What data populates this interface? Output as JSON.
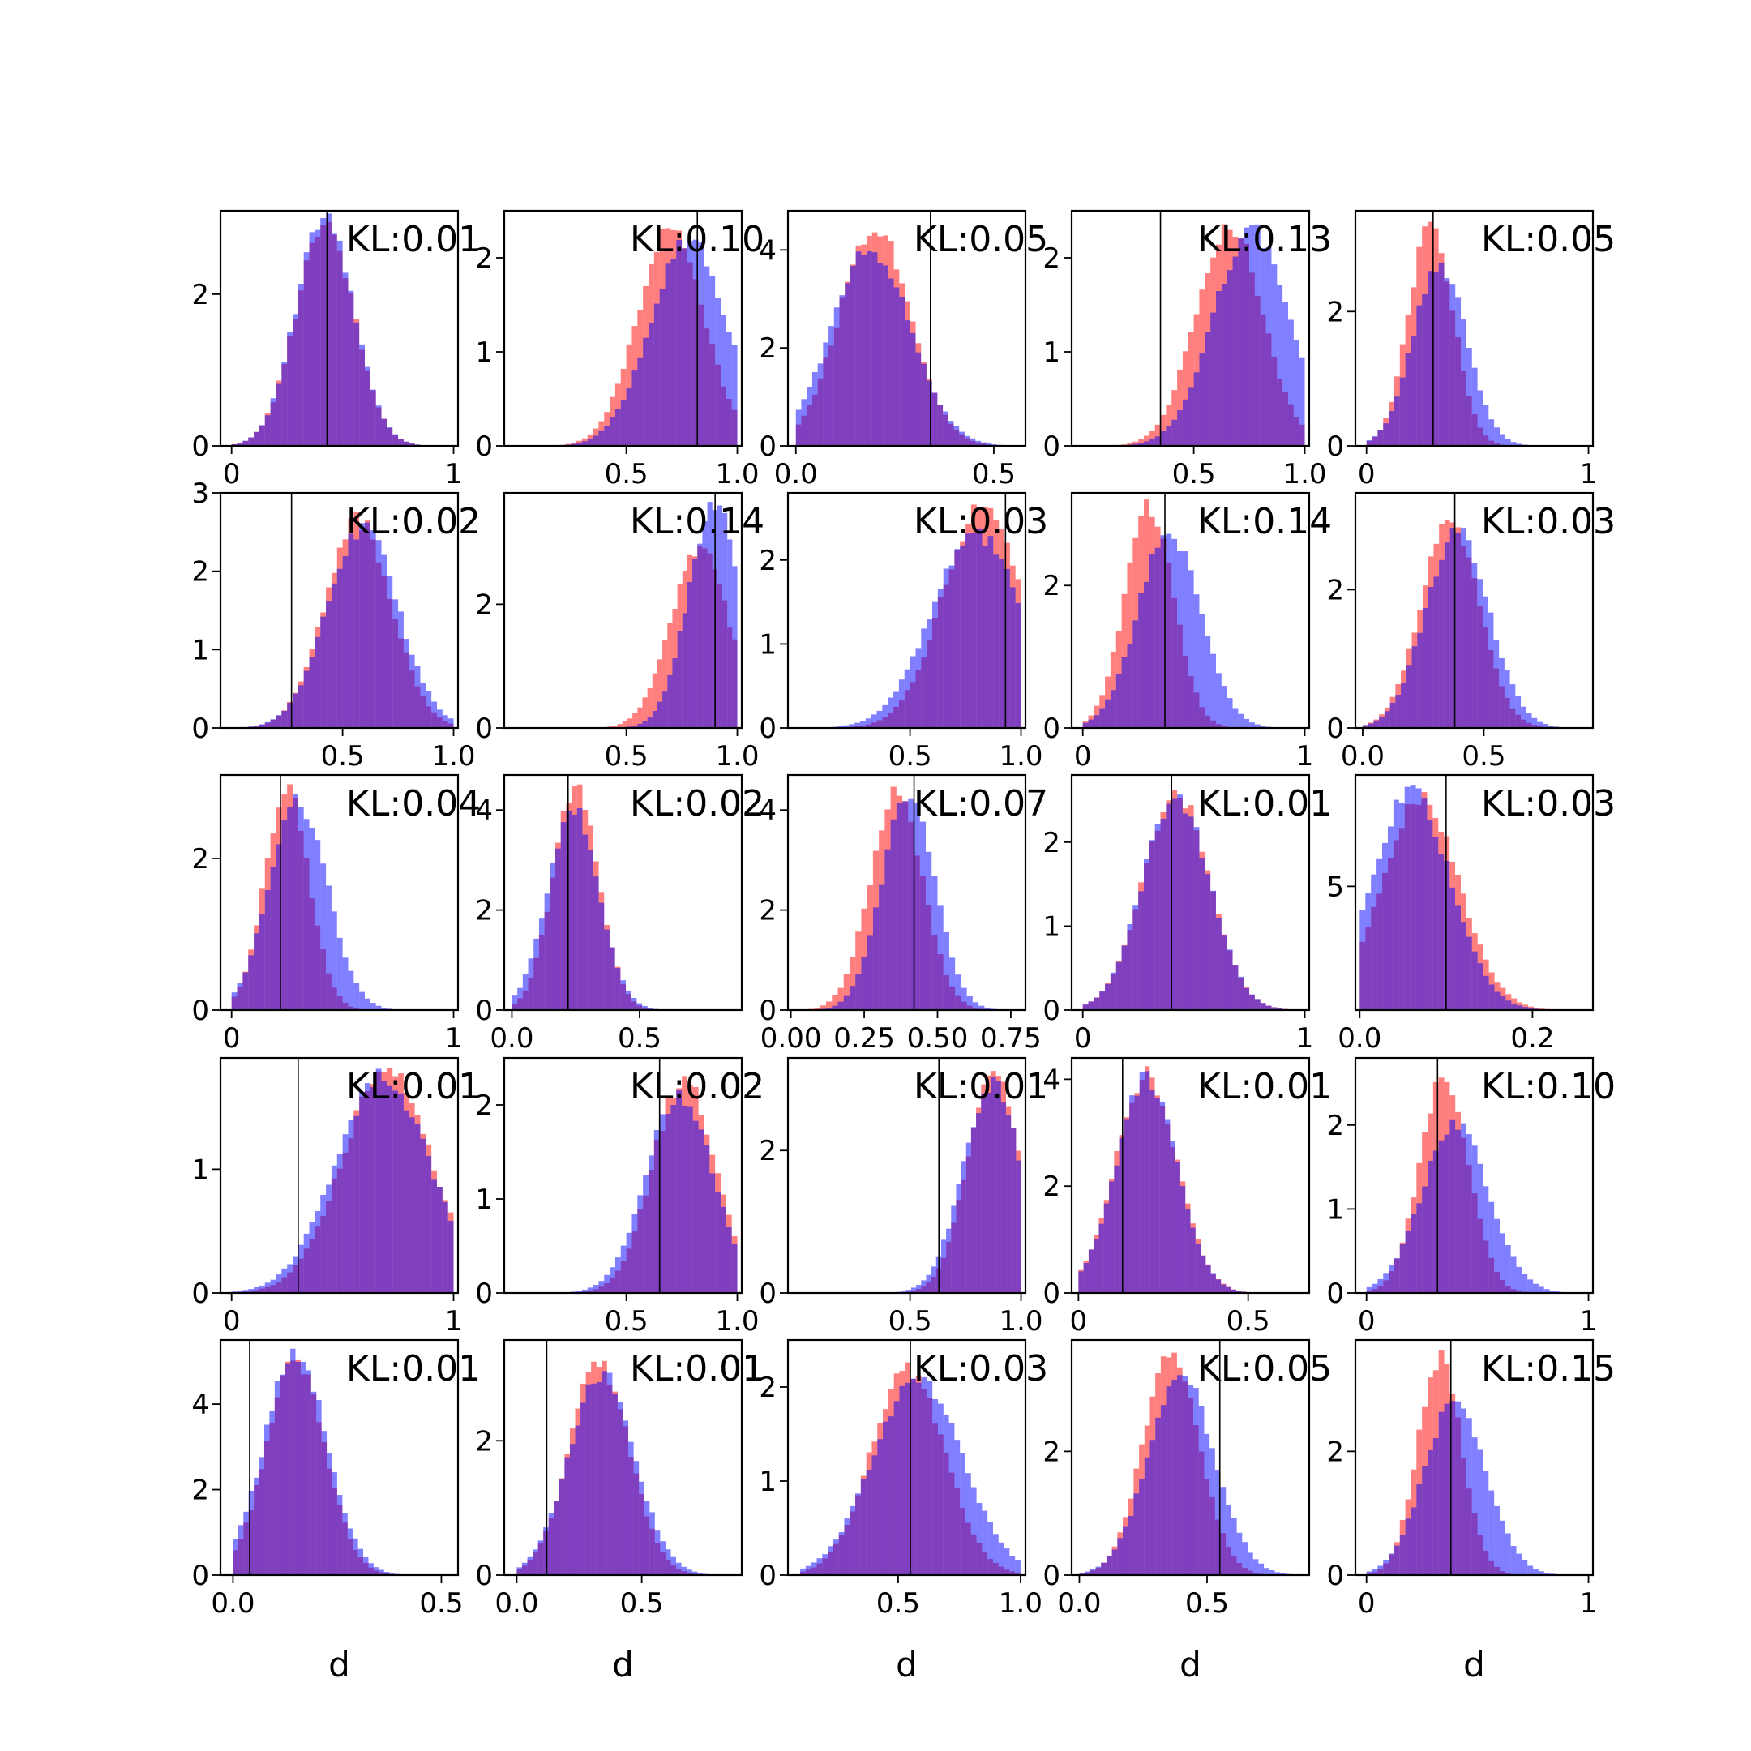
{
  "figure": {
    "colors": {
      "red": "#ff0000",
      "blue": "#0000ff",
      "overlap": "#7f00bf",
      "line": "#000000",
      "background": "#ffffff"
    }
  },
  "chart_data": [
    {
      "type": "histogram",
      "kl_label": "KL:0.01",
      "vline": 0.43,
      "xlim": [
        -0.05,
        1.02
      ],
      "ylim": [
        0,
        3.1
      ],
      "xticks": [
        {
          "v": 0,
          "l": "0"
        },
        {
          "v": 1,
          "l": "1"
        }
      ],
      "yticks": [
        {
          "v": 0,
          "l": "0"
        },
        {
          "v": 2,
          "l": "2"
        }
      ],
      "red": {
        "mean": 0.42,
        "sd": 0.13,
        "peak": 2.95,
        "lo": 0.0,
        "hi": 1.0
      },
      "blue": {
        "mean": 0.42,
        "sd": 0.13,
        "peak": 3.0,
        "lo": 0.0,
        "hi": 1.0
      },
      "xlabel": ""
    },
    {
      "type": "histogram",
      "kl_label": "KL:0.10",
      "vline": 0.82,
      "xlim": [
        -0.05,
        1.02
      ],
      "ylim": [
        0,
        2.5
      ],
      "xticks": [
        {
          "v": 0.5,
          "l": "0.5"
        },
        {
          "v": 1,
          "l": "1.0"
        }
      ],
      "yticks": [
        {
          "v": 0,
          "l": "0"
        },
        {
          "v": 1,
          "l": "1"
        },
        {
          "v": 2,
          "l": "2"
        }
      ],
      "red": {
        "mean": 0.7,
        "sd": 0.15,
        "peak": 2.3,
        "lo": 0.0,
        "hi": 1.0
      },
      "blue": {
        "mean": 0.78,
        "sd": 0.17,
        "peak": 2.2,
        "lo": 0.0,
        "hi": 1.0
      },
      "xlabel": ""
    },
    {
      "type": "histogram",
      "kl_label": "KL:0.05",
      "vline": 0.34,
      "xlim": [
        -0.02,
        0.58
      ],
      "ylim": [
        0,
        4.8
      ],
      "xticks": [
        {
          "v": 0,
          "l": "0.0"
        },
        {
          "v": 0.5,
          "l": "0.5"
        }
      ],
      "yticks": [
        {
          "v": 0,
          "l": "0"
        },
        {
          "v": 2,
          "l": "2"
        },
        {
          "v": 4,
          "l": "4"
        }
      ],
      "red": {
        "mean": 0.2,
        "sd": 0.09,
        "peak": 4.5,
        "lo": 0.0,
        "hi": 0.55
      },
      "blue": {
        "mean": 0.19,
        "sd": 0.1,
        "peak": 4.0,
        "lo": 0.0,
        "hi": 0.55
      },
      "xlabel": ""
    },
    {
      "type": "histogram",
      "kl_label": "KL:0.13",
      "vline": 0.35,
      "xlim": [
        -0.05,
        1.02
      ],
      "ylim": [
        0,
        2.5
      ],
      "xticks": [
        {
          "v": 0.5,
          "l": "0.5"
        },
        {
          "v": 1,
          "l": "1.0"
        }
      ],
      "yticks": [
        {
          "v": 0,
          "l": "0"
        },
        {
          "v": 1,
          "l": "1"
        },
        {
          "v": 2,
          "l": "2"
        }
      ],
      "red": {
        "mean": 0.66,
        "sd": 0.15,
        "peak": 2.35,
        "lo": 0.0,
        "hi": 1.0
      },
      "blue": {
        "mean": 0.76,
        "sd": 0.17,
        "peak": 2.3,
        "lo": 0.0,
        "hi": 1.0
      },
      "xlabel": ""
    },
    {
      "type": "histogram",
      "kl_label": "KL:0.05",
      "vline": 0.3,
      "xlim": [
        -0.05,
        1.02
      ],
      "ylim": [
        0,
        3.5
      ],
      "xticks": [
        {
          "v": 0,
          "l": "0"
        },
        {
          "v": 1,
          "l": "1"
        }
      ],
      "yticks": [
        {
          "v": 0,
          "l": "0"
        },
        {
          "v": 2,
          "l": "2"
        }
      ],
      "red": {
        "mean": 0.29,
        "sd": 0.1,
        "peak": 3.3,
        "lo": 0.0,
        "hi": 1.0
      },
      "blue": {
        "mean": 0.33,
        "sd": 0.12,
        "peak": 2.7,
        "lo": 0.0,
        "hi": 1.0
      },
      "xlabel": ""
    },
    {
      "type": "histogram",
      "kl_label": "KL:0.02",
      "vline": 0.27,
      "xlim": [
        -0.05,
        1.02
      ],
      "ylim": [
        0,
        3.0
      ],
      "xticks": [
        {
          "v": 0.5,
          "l": "0.5"
        },
        {
          "v": 1,
          "l": "1.0"
        }
      ],
      "yticks": [
        {
          "v": 0,
          "l": "0"
        },
        {
          "v": 1,
          "l": "1"
        },
        {
          "v": 2,
          "l": "2"
        },
        {
          "v": 3,
          "l": "3"
        }
      ],
      "red": {
        "mean": 0.57,
        "sd": 0.15,
        "peak": 2.65,
        "lo": 0.0,
        "hi": 1.0
      },
      "blue": {
        "mean": 0.59,
        "sd": 0.16,
        "peak": 2.55,
        "lo": 0.0,
        "hi": 1.0
      },
      "xlabel": ""
    },
    {
      "type": "histogram",
      "kl_label": "KL:0.14",
      "vline": 0.9,
      "xlim": [
        -0.05,
        1.02
      ],
      "ylim": [
        0,
        3.8
      ],
      "xticks": [
        {
          "v": 0.5,
          "l": "0.5"
        },
        {
          "v": 1,
          "l": "1.0"
        }
      ],
      "yticks": [
        {
          "v": 0,
          "l": "0"
        },
        {
          "v": 2,
          "l": "2"
        }
      ],
      "red": {
        "mean": 0.83,
        "sd": 0.13,
        "peak": 2.9,
        "lo": 0.1,
        "hi": 1.0
      },
      "blue": {
        "mean": 0.9,
        "sd": 0.12,
        "peak": 3.6,
        "lo": 0.1,
        "hi": 1.0
      },
      "xlabel": ""
    },
    {
      "type": "histogram",
      "kl_label": "KL:0.03",
      "vline": 0.93,
      "xlim": [
        -0.05,
        1.02
      ],
      "ylim": [
        0,
        2.8
      ],
      "xticks": [
        {
          "v": 0.5,
          "l": "0.5"
        },
        {
          "v": 1,
          "l": "1.0"
        }
      ],
      "yticks": [
        {
          "v": 0,
          "l": "0"
        },
        {
          "v": 1,
          "l": "1"
        },
        {
          "v": 2,
          "l": "2"
        }
      ],
      "red": {
        "mean": 0.83,
        "sd": 0.18,
        "peak": 2.65,
        "lo": 0.0,
        "hi": 1.0
      },
      "blue": {
        "mean": 0.8,
        "sd": 0.2,
        "peak": 2.3,
        "lo": 0.0,
        "hi": 1.0
      },
      "xlabel": ""
    },
    {
      "type": "histogram",
      "kl_label": "KL:0.14",
      "vline": 0.37,
      "xlim": [
        -0.05,
        1.02
      ],
      "ylim": [
        0,
        3.3
      ],
      "xticks": [
        {
          "v": 0,
          "l": "0"
        },
        {
          "v": 1,
          "l": "1"
        }
      ],
      "yticks": [
        {
          "v": 0,
          "l": "0"
        },
        {
          "v": 2,
          "l": "2"
        }
      ],
      "red": {
        "mean": 0.3,
        "sd": 0.11,
        "peak": 3.1,
        "lo": 0.0,
        "hi": 1.0
      },
      "blue": {
        "mean": 0.39,
        "sd": 0.14,
        "peak": 2.75,
        "lo": 0.0,
        "hi": 1.0
      },
      "xlabel": ""
    },
    {
      "type": "histogram",
      "kl_label": "KL:0.03",
      "vline": 0.38,
      "xlim": [
        -0.03,
        0.95
      ],
      "ylim": [
        0,
        3.4
      ],
      "xticks": [
        {
          "v": 0,
          "l": "0.0"
        },
        {
          "v": 0.5,
          "l": "0.5"
        }
      ],
      "yticks": [
        {
          "v": 0,
          "l": "0"
        },
        {
          "v": 2,
          "l": "2"
        }
      ],
      "red": {
        "mean": 0.36,
        "sd": 0.12,
        "peak": 3.0,
        "lo": 0.0,
        "hi": 0.9
      },
      "blue": {
        "mean": 0.39,
        "sd": 0.13,
        "peak": 2.85,
        "lo": 0.0,
        "hi": 0.9
      },
      "xlabel": ""
    },
    {
      "type": "histogram",
      "kl_label": "KL:0.04",
      "vline": 0.22,
      "xlim": [
        -0.05,
        1.02
      ],
      "ylim": [
        0,
        3.1
      ],
      "xticks": [
        {
          "v": 0,
          "l": "0"
        },
        {
          "v": 1,
          "l": "1"
        }
      ],
      "yticks": [
        {
          "v": 0,
          "l": "0"
        },
        {
          "v": 2,
          "l": "2"
        }
      ],
      "red": {
        "mean": 0.25,
        "sd": 0.1,
        "peak": 2.9,
        "lo": 0.0,
        "hi": 1.0
      },
      "blue": {
        "mean": 0.3,
        "sd": 0.13,
        "peak": 2.75,
        "lo": 0.0,
        "hi": 1.0
      },
      "xlabel": ""
    },
    {
      "type": "histogram",
      "kl_label": "KL:0.02",
      "vline": 0.22,
      "xlim": [
        -0.03,
        0.9
      ],
      "ylim": [
        0,
        4.7
      ],
      "xticks": [
        {
          "v": 0,
          "l": "0.0"
        },
        {
          "v": 0.5,
          "l": "0.5"
        }
      ],
      "yticks": [
        {
          "v": 0,
          "l": "0"
        },
        {
          "v": 2,
          "l": "2"
        },
        {
          "v": 4,
          "l": "4"
        }
      ],
      "red": {
        "mean": 0.25,
        "sd": 0.09,
        "peak": 4.4,
        "lo": 0.0,
        "hi": 0.85
      },
      "blue": {
        "mean": 0.24,
        "sd": 0.1,
        "peak": 4.0,
        "lo": 0.0,
        "hi": 0.85
      },
      "xlabel": ""
    },
    {
      "type": "histogram",
      "kl_label": "KL:0.07",
      "vline": 0.42,
      "xlim": [
        -0.01,
        0.8
      ],
      "ylim": [
        0,
        4.7
      ],
      "xticks": [
        {
          "v": 0,
          "l": "0.00"
        },
        {
          "v": 0.25,
          "l": "0.25"
        },
        {
          "v": 0.5,
          "l": "0.50"
        },
        {
          "v": 0.75,
          "l": "0.75"
        }
      ],
      "yticks": [
        {
          "v": 0,
          "l": "0"
        },
        {
          "v": 2,
          "l": "2"
        },
        {
          "v": 4,
          "l": "4"
        }
      ],
      "red": {
        "mean": 0.36,
        "sd": 0.09,
        "peak": 4.3,
        "lo": 0.0,
        "hi": 0.8
      },
      "blue": {
        "mean": 0.4,
        "sd": 0.09,
        "peak": 4.3,
        "lo": 0.0,
        "hi": 0.8
      },
      "xlabel": ""
    },
    {
      "type": "histogram",
      "kl_label": "KL:0.01",
      "vline": 0.4,
      "xlim": [
        -0.05,
        1.02
      ],
      "ylim": [
        0,
        2.8
      ],
      "xticks": [
        {
          "v": 0,
          "l": "0"
        },
        {
          "v": 1,
          "l": "1"
        }
      ],
      "yticks": [
        {
          "v": 0,
          "l": "0"
        },
        {
          "v": 1,
          "l": "1"
        },
        {
          "v": 2,
          "l": "2"
        }
      ],
      "red": {
        "mean": 0.42,
        "sd": 0.15,
        "peak": 2.6,
        "lo": 0.0,
        "hi": 1.0
      },
      "blue": {
        "mean": 0.42,
        "sd": 0.15,
        "peak": 2.55,
        "lo": 0.0,
        "hi": 1.0
      },
      "xlabel": ""
    },
    {
      "type": "histogram",
      "kl_label": "KL:0.03",
      "vline": 0.1,
      "xlim": [
        -0.005,
        0.27
      ],
      "ylim": [
        0,
        9.5
      ],
      "xticks": [
        {
          "v": 0,
          "l": "0.0"
        },
        {
          "v": 0.2,
          "l": "0.2"
        }
      ],
      "yticks": [
        {
          "v": 5,
          "l": "5"
        }
      ],
      "red": {
        "mean": 0.07,
        "sd": 0.045,
        "peak": 8.5,
        "lo": 0.0,
        "hi": 0.26
      },
      "blue": {
        "mean": 0.06,
        "sd": 0.045,
        "peak": 8.8,
        "lo": 0.0,
        "hi": 0.26
      },
      "xlabel": ""
    },
    {
      "type": "histogram",
      "kl_label": "KL:0.01",
      "vline": 0.3,
      "xlim": [
        -0.05,
        1.02
      ],
      "ylim": [
        0,
        1.9
      ],
      "xticks": [
        {
          "v": 0,
          "l": "0"
        },
        {
          "v": 1,
          "l": "1"
        }
      ],
      "yticks": [
        {
          "v": 0,
          "l": "0"
        },
        {
          "v": 1,
          "l": "1"
        }
      ],
      "red": {
        "mean": 0.7,
        "sd": 0.2,
        "peak": 1.8,
        "lo": 0.0,
        "hi": 1.0
      },
      "blue": {
        "mean": 0.68,
        "sd": 0.21,
        "peak": 1.75,
        "lo": 0.0,
        "hi": 1.0
      },
      "xlabel": ""
    },
    {
      "type": "histogram",
      "kl_label": "KL:0.02",
      "vline": 0.65,
      "xlim": [
        -0.05,
        1.02
      ],
      "ylim": [
        0,
        2.5
      ],
      "xticks": [
        {
          "v": 0.5,
          "l": "0.5"
        },
        {
          "v": 1,
          "l": "1.0"
        }
      ],
      "yticks": [
        {
          "v": 0,
          "l": "0"
        },
        {
          "v": 1,
          "l": "1"
        },
        {
          "v": 2,
          "l": "2"
        }
      ],
      "red": {
        "mean": 0.76,
        "sd": 0.14,
        "peak": 2.3,
        "lo": 0.0,
        "hi": 1.0
      },
      "blue": {
        "mean": 0.74,
        "sd": 0.15,
        "peak": 2.1,
        "lo": 0.0,
        "hi": 1.0
      },
      "xlabel": ""
    },
    {
      "type": "histogram",
      "kl_label": "KL:0.01",
      "vline": 0.63,
      "xlim": [
        -0.05,
        1.02
      ],
      "ylim": [
        0,
        3.3
      ],
      "xticks": [
        {
          "v": 0.5,
          "l": "0.5"
        },
        {
          "v": 1,
          "l": "1.0"
        }
      ],
      "yticks": [
        {
          "v": 0,
          "l": "0"
        },
        {
          "v": 2,
          "l": "2"
        }
      ],
      "red": {
        "mean": 0.88,
        "sd": 0.12,
        "peak": 3.1,
        "lo": 0.1,
        "hi": 1.0
      },
      "blue": {
        "mean": 0.87,
        "sd": 0.13,
        "peak": 2.95,
        "lo": 0.1,
        "hi": 1.0
      },
      "xlabel": ""
    },
    {
      "type": "histogram",
      "kl_label": "KL:0.01",
      "vline": 0.13,
      "xlim": [
        -0.02,
        0.68
      ],
      "ylim": [
        0,
        4.4
      ],
      "xticks": [
        {
          "v": 0,
          "l": "0"
        },
        {
          "v": 0.5,
          "l": "0.5"
        }
      ],
      "yticks": [
        {
          "v": 0,
          "l": "0"
        },
        {
          "v": 2,
          "l": "2"
        },
        {
          "v": 4,
          "l": "4"
        }
      ],
      "red": {
        "mean": 0.2,
        "sd": 0.09,
        "peak": 4.1,
        "lo": 0.0,
        "hi": 0.6
      },
      "blue": {
        "mean": 0.2,
        "sd": 0.09,
        "peak": 4.0,
        "lo": 0.0,
        "hi": 0.6
      },
      "xlabel": ""
    },
    {
      "type": "histogram",
      "kl_label": "KL:0.10",
      "vline": 0.32,
      "xlim": [
        -0.05,
        1.02
      ],
      "ylim": [
        0,
        2.8
      ],
      "xticks": [
        {
          "v": 0,
          "l": "0"
        },
        {
          "v": 1,
          "l": "1"
        }
      ],
      "yticks": [
        {
          "v": 0,
          "l": "0"
        },
        {
          "v": 1,
          "l": "1"
        },
        {
          "v": 2,
          "l": "2"
        }
      ],
      "red": {
        "mean": 0.35,
        "sd": 0.11,
        "peak": 2.6,
        "lo": 0.0,
        "hi": 1.0
      },
      "blue": {
        "mean": 0.4,
        "sd": 0.15,
        "peak": 2.0,
        "lo": 0.0,
        "hi": 1.0
      },
      "xlabel": ""
    },
    {
      "type": "histogram",
      "kl_label": "KL:0.01",
      "vline": 0.04,
      "xlim": [
        -0.03,
        0.54
      ],
      "ylim": [
        0,
        5.5
      ],
      "xticks": [
        {
          "v": 0,
          "l": "0.0"
        },
        {
          "v": 0.5,
          "l": "0.5"
        }
      ],
      "yticks": [
        {
          "v": 0,
          "l": "0"
        },
        {
          "v": 2,
          "l": "2"
        },
        {
          "v": 4,
          "l": "4"
        }
      ],
      "red": {
        "mean": 0.15,
        "sd": 0.07,
        "peak": 5.0,
        "lo": 0.0,
        "hi": 0.5
      },
      "blue": {
        "mean": 0.15,
        "sd": 0.075,
        "peak": 5.2,
        "lo": 0.0,
        "hi": 0.5
      },
      "xlabel": "d"
    },
    {
      "type": "histogram",
      "kl_label": "KL:0.01",
      "vline": 0.12,
      "xlim": [
        -0.05,
        0.9
      ],
      "ylim": [
        0,
        3.5
      ],
      "xticks": [
        {
          "v": 0,
          "l": "0.0"
        },
        {
          "v": 0.5,
          "l": "0.5"
        }
      ],
      "yticks": [
        {
          "v": 0,
          "l": "0"
        },
        {
          "v": 2,
          "l": "2"
        }
      ],
      "red": {
        "mean": 0.33,
        "sd": 0.12,
        "peak": 3.15,
        "lo": 0.0,
        "hi": 0.85
      },
      "blue": {
        "mean": 0.34,
        "sd": 0.13,
        "peak": 3.0,
        "lo": 0.0,
        "hi": 0.85
      },
      "xlabel": "d"
    },
    {
      "type": "histogram",
      "kl_label": "KL:0.03",
      "vline": 0.55,
      "xlim": [
        0.05,
        1.02
      ],
      "ylim": [
        0,
        2.5
      ],
      "xticks": [
        {
          "v": 0.5,
          "l": "0.5"
        },
        {
          "v": 1,
          "l": "1.0"
        }
      ],
      "yticks": [
        {
          "v": 0,
          "l": "0"
        },
        {
          "v": 1,
          "l": "1"
        },
        {
          "v": 2,
          "l": "2"
        }
      ],
      "red": {
        "mean": 0.54,
        "sd": 0.15,
        "peak": 2.2,
        "lo": 0.1,
        "hi": 1.0
      },
      "blue": {
        "mean": 0.58,
        "sd": 0.18,
        "peak": 2.1,
        "lo": 0.1,
        "hi": 1.0
      },
      "xlabel": "d"
    },
    {
      "type": "histogram",
      "kl_label": "KL:0.05",
      "vline": 0.55,
      "xlim": [
        -0.03,
        0.9
      ],
      "ylim": [
        0,
        3.8
      ],
      "xticks": [
        {
          "v": 0,
          "l": "0.0"
        },
        {
          "v": 0.5,
          "l": "0.5"
        }
      ],
      "yticks": [
        {
          "v": 0,
          "l": "0"
        },
        {
          "v": 2,
          "l": "2"
        }
      ],
      "red": {
        "mean": 0.36,
        "sd": 0.11,
        "peak": 3.6,
        "lo": 0.0,
        "hi": 0.85
      },
      "blue": {
        "mean": 0.4,
        "sd": 0.13,
        "peak": 3.2,
        "lo": 0.0,
        "hi": 0.85
      },
      "xlabel": "d"
    },
    {
      "type": "histogram",
      "kl_label": "KL:0.15",
      "vline": 0.38,
      "xlim": [
        -0.05,
        1.02
      ],
      "ylim": [
        0,
        3.8
      ],
      "xticks": [
        {
          "v": 0,
          "l": "0"
        },
        {
          "v": 1,
          "l": "1"
        }
      ],
      "yticks": [
        {
          "v": 0,
          "l": "0"
        },
        {
          "v": 2,
          "l": "2"
        }
      ],
      "red": {
        "mean": 0.33,
        "sd": 0.1,
        "peak": 3.5,
        "lo": 0.0,
        "hi": 1.0
      },
      "blue": {
        "mean": 0.4,
        "sd": 0.14,
        "peak": 2.8,
        "lo": 0.0,
        "hi": 1.0
      },
      "xlabel": "d"
    }
  ]
}
